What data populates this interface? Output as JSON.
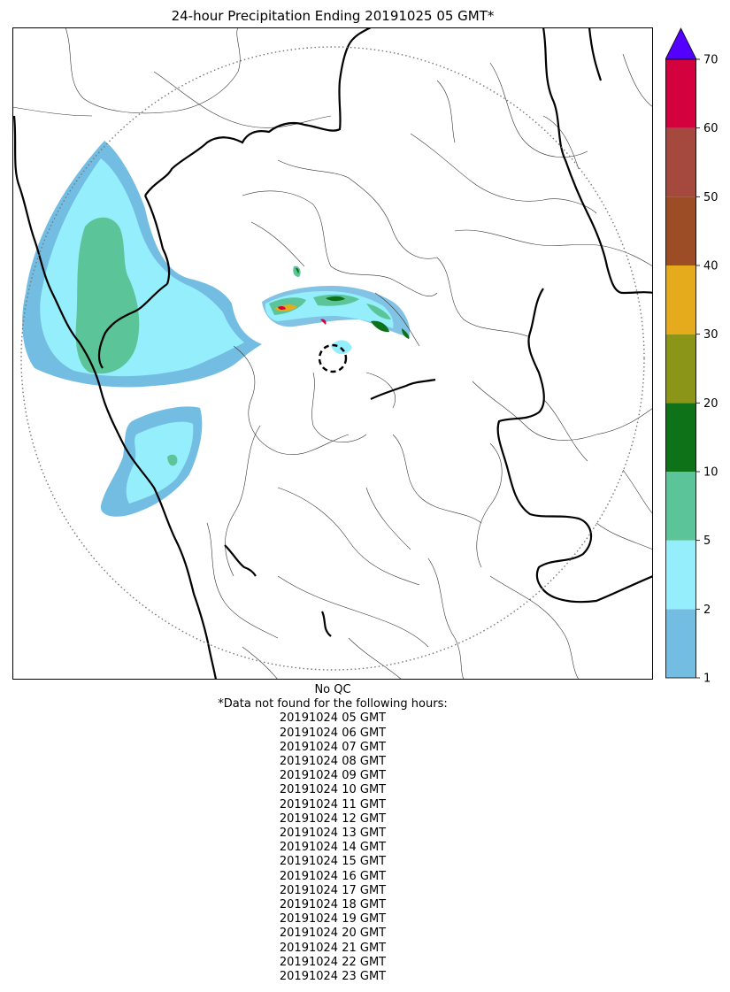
{
  "title": "24-hour Precipitation Ending 20191025 05 GMT*",
  "colorbar": {
    "ticks": [
      "1",
      "2",
      "5",
      "10",
      "20",
      "30",
      "40",
      "50",
      "60",
      "70"
    ],
    "colors": [
      "#74bde2",
      "#95eefc",
      "#5cc499",
      "#0e7219",
      "#8b9517",
      "#e5ab1c",
      "#9c4d26",
      "#a5483e",
      "#d3013e"
    ],
    "extend_color": "#5300ff"
  },
  "notes": {
    "qc": "No QC",
    "missing_header": "*Data not found for the following hours:",
    "hours": [
      "20191024 05 GMT",
      "20191024 06 GMT",
      "20191024 07 GMT",
      "20191024 08 GMT",
      "20191024 09 GMT",
      "20191024 10 GMT",
      "20191024 11 GMT",
      "20191024 12 GMT",
      "20191024 13 GMT",
      "20191024 14 GMT",
      "20191024 15 GMT",
      "20191024 16 GMT",
      "20191024 17 GMT",
      "20191024 18 GMT",
      "20191024 19 GMT",
      "20191024 20 GMT",
      "20191024 21 GMT",
      "20191024 22 GMT",
      "20191024 23 GMT"
    ]
  }
}
